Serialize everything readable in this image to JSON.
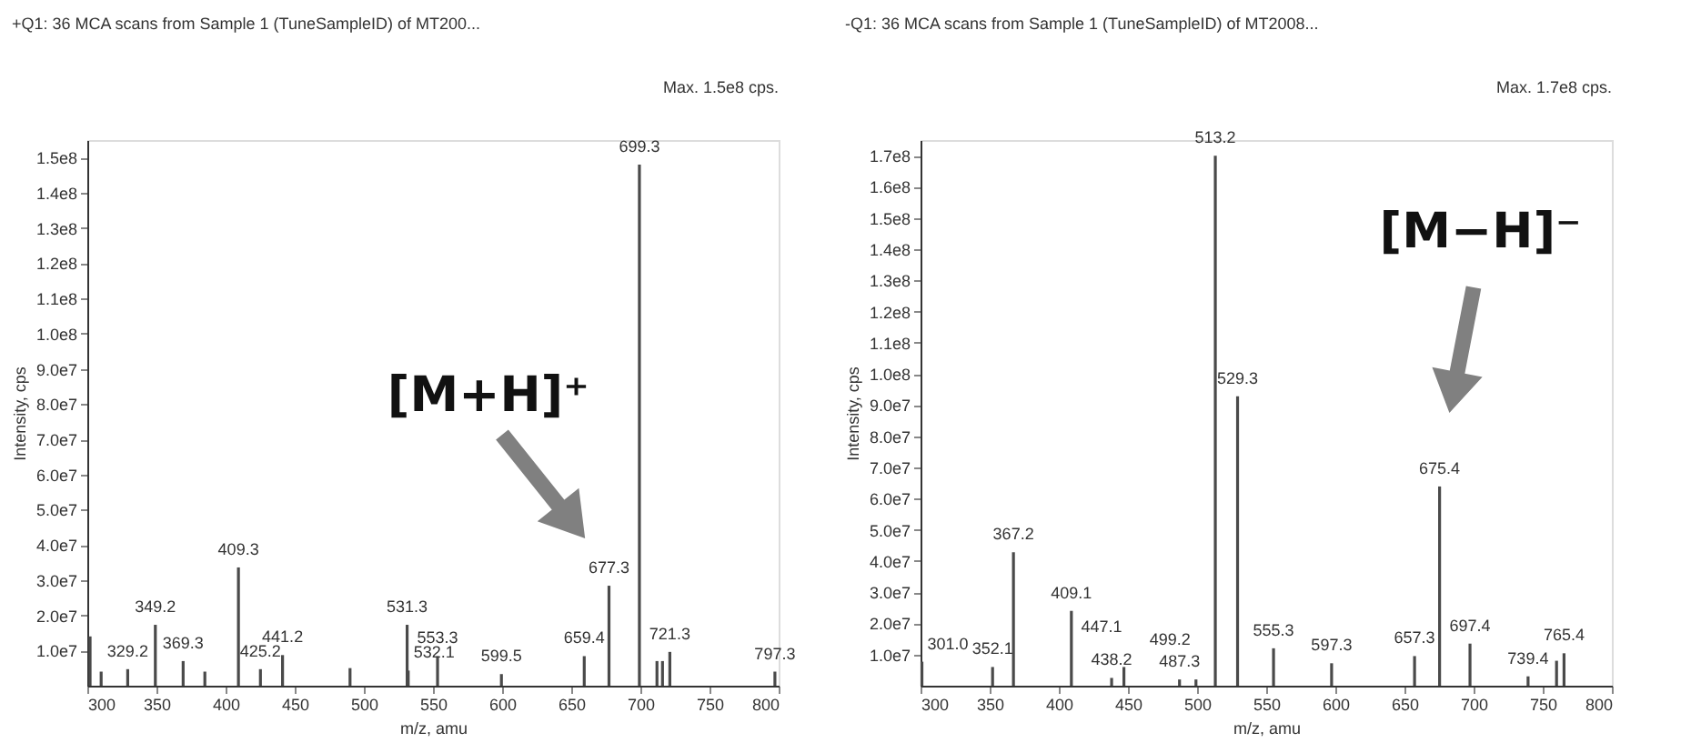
{
  "chart_data": [
    {
      "type": "bar",
      "title": "+Q1: 36 MCA scans from Sample 1 (TuneSampleID) of MT200...",
      "xlabel": "m/z, amu",
      "ylabel": "Intensity, cps",
      "color": "#4a4a4a",
      "annotations": [
        "Max. 1.5e8 cps.",
        "[M+H]⁺",
        {
          "text": "329.2",
          "x": 329.2,
          "y": 4700000
        },
        {
          "text": "349.2",
          "x": 349.2,
          "y": 17300000
        },
        {
          "text": "369.3",
          "x": 369.3,
          "y": 7000000
        },
        {
          "text": "409.3",
          "x": 409.3,
          "y": 33600000
        },
        {
          "text": "425.2",
          "x": 425.2,
          "y": 4700000
        },
        {
          "text": "441.2",
          "x": 441.2,
          "y": 8700000
        },
        {
          "text": "531.3",
          "x": 531.3,
          "y": 17300000
        },
        {
          "text": "532.1",
          "x": 532.1,
          "y": 4300000
        },
        {
          "text": "553.3",
          "x": 553.3,
          "y": 8400000
        },
        {
          "text": "599.5",
          "x": 599.5,
          "y": 3300000
        },
        {
          "text": "659.4",
          "x": 659.4,
          "y": 8400000
        },
        {
          "text": "677.3",
          "x": 677.3,
          "y": 28400000
        },
        {
          "text": "699.3",
          "x": 699.3,
          "y": 148000000
        },
        {
          "text": "721.3",
          "x": 721.3,
          "y": 9600000
        },
        {
          "text": "797.3",
          "x": 797.3,
          "y": 4000000
        }
      ],
      "x": [
        302,
        310,
        329.2,
        349.2,
        369.3,
        385,
        409.3,
        425.2,
        441.2,
        490,
        531.3,
        532.1,
        553.3,
        599.5,
        659.4,
        677.3,
        699.3,
        712,
        716,
        721.3,
        797.3
      ],
      "values": [
        14000000,
        4000000,
        4700000,
        17300000,
        7000000,
        4000000,
        33600000,
        4700000,
        8700000,
        5000000,
        17300000,
        4300000,
        8400000,
        3300000,
        8400000,
        28400000,
        148000000,
        7000000,
        7000000,
        9600000,
        4000000
      ],
      "xlim": [
        300,
        800
      ],
      "xticks": [
        300,
        350,
        400,
        450,
        500,
        550,
        600,
        650,
        700,
        750,
        800
      ],
      "ylim": [
        0,
        155000000
      ],
      "yticks": [
        {
          "value": 10000000,
          "label": "1.0e7"
        },
        {
          "value": 20000000,
          "label": "2.0e7"
        },
        {
          "value": 30000000,
          "label": "3.0e7"
        },
        {
          "value": 40000000,
          "label": "4.0e7"
        },
        {
          "value": 50000000,
          "label": "5.0e7"
        },
        {
          "value": 60000000,
          "label": "6.0e7"
        },
        {
          "value": 70000000,
          "label": "7.0e7"
        },
        {
          "value": 80000000,
          "label": "8.0e7"
        },
        {
          "value": 90000000,
          "label": "9.0e7"
        },
        {
          "value": 100000000,
          "label": "1.0e8"
        },
        {
          "value": 110000000,
          "label": "1.1e8"
        },
        {
          "value": 120000000,
          "label": "1.2e8"
        },
        {
          "value": 130000000,
          "label": "1.3e8"
        },
        {
          "value": 140000000,
          "label": "1.4e8"
        },
        {
          "value": 150000000,
          "label": "1.5e8"
        }
      ]
    },
    {
      "type": "bar",
      "title": "-Q1: 36 MCA scans from Sample 1 (TuneSampleID) of MT2008...",
      "xlabel": "m/z, amu",
      "ylabel": "Intensity, cps",
      "color": "#4a4a4a",
      "annotations": [
        "Max. 1.7e8 cps.",
        "[M−H]⁻",
        {
          "text": "301.0",
          "x": 301.0,
          "y": 7700000
        },
        {
          "text": "352.1",
          "x": 352.1,
          "y": 6000000
        },
        {
          "text": "367.2",
          "x": 367.2,
          "y": 42800000
        },
        {
          "text": "409.1",
          "x": 409.1,
          "y": 24000000
        },
        {
          "text": "438.2",
          "x": 438.2,
          "y": 2500000
        },
        {
          "text": "447.1",
          "x": 447.1,
          "y": 6000000
        },
        {
          "text": "487.3",
          "x": 487.3,
          "y": 2000000
        },
        {
          "text": "499.2",
          "x": 499.2,
          "y": 2000000
        },
        {
          "text": "513.2",
          "x": 513.2,
          "y": 170000000
        },
        {
          "text": "529.3",
          "x": 529.3,
          "y": 92800000
        },
        {
          "text": "555.3",
          "x": 555.3,
          "y": 12000000
        },
        {
          "text": "597.3",
          "x": 597.3,
          "y": 7200000
        },
        {
          "text": "657.3",
          "x": 657.3,
          "y": 9500000
        },
        {
          "text": "675.4",
          "x": 675.4,
          "y": 63900000
        },
        {
          "text": "697.4",
          "x": 697.4,
          "y": 13500000
        },
        {
          "text": "739.4",
          "x": 739.4,
          "y": 3000000
        },
        {
          "text": "765.4",
          "x": 765.4,
          "y": 10400000
        }
      ],
      "x": [
        301.0,
        352.1,
        367.2,
        409.1,
        438.2,
        447.1,
        487.3,
        499.2,
        513.2,
        529.3,
        555.3,
        597.3,
        657.3,
        675.4,
        697.4,
        739.4,
        760,
        765.4
      ],
      "values": [
        7700000,
        6000000,
        42800000,
        24000000,
        2500000,
        6000000,
        2000000,
        2000000,
        170000000,
        92800000,
        12000000,
        7200000,
        9500000,
        63900000,
        13500000,
        3000000,
        8000000,
        10400000
      ],
      "xlim": [
        300,
        800
      ],
      "xticks": [
        300,
        350,
        400,
        450,
        500,
        550,
        600,
        650,
        700,
        750,
        800
      ],
      "ylim": [
        0,
        175000000
      ],
      "yticks": [
        {
          "value": 10000000,
          "label": "1.0e7"
        },
        {
          "value": 20000000,
          "label": "2.0e7"
        },
        {
          "value": 30000000,
          "label": "3.0e7"
        },
        {
          "value": 40000000,
          "label": "4.0e7"
        },
        {
          "value": 50000000,
          "label": "5.0e7"
        },
        {
          "value": 60000000,
          "label": "6.0e7"
        },
        {
          "value": 70000000,
          "label": "7.0e7"
        },
        {
          "value": 80000000,
          "label": "8.0e7"
        },
        {
          "value": 90000000,
          "label": "9.0e7"
        },
        {
          "value": 100000000,
          "label": "1.0e8"
        },
        {
          "value": 110000000,
          "label": "1.1e8"
        },
        {
          "value": 120000000,
          "label": "1.2e8"
        },
        {
          "value": 130000000,
          "label": "1.3e8"
        },
        {
          "value": 140000000,
          "label": "1.4e8"
        },
        {
          "value": 150000000,
          "label": "1.5e8"
        },
        {
          "value": 160000000,
          "label": "1.6e8"
        },
        {
          "value": 170000000,
          "label": "1.7e8"
        }
      ]
    }
  ]
}
